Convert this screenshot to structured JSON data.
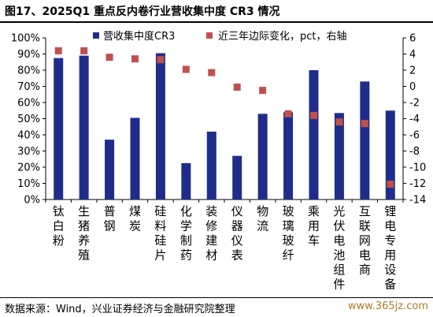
{
  "title": "图17、2025Q1 重点反内卷行业营收集中度 CR3 情况",
  "source": "数据来源：Wind，兴业证券经济与金融研究院整理",
  "watermark": "www.365jz.com",
  "colors": {
    "bar": "#1f2d8a",
    "marker": "#c0504d"
  },
  "chart_data": {
    "type": "bar",
    "categories": [
      "钛白粉",
      "生猪养殖",
      "普钢",
      "煤炭",
      "硅料硅片",
      "化学制药",
      "装修建材",
      "仪器仪表",
      "物流",
      "玻璃玻纤",
      "乘用车",
      "光伏电池组件",
      "互联网电商",
      "锂电专用设备"
    ],
    "series": [
      {
        "name": "营收集中度CR3",
        "type": "bar",
        "axis": "left",
        "values": [
          87.5,
          89,
          37,
          50.5,
          90.5,
          22.5,
          42,
          27,
          53,
          54,
          80,
          53.5,
          73,
          55
        ]
      },
      {
        "name": "近三年边际变化，pct，右轴",
        "type": "marker",
        "axis": "right",
        "values": [
          4.4,
          4.4,
          3.6,
          3.4,
          3.3,
          2.1,
          1.7,
          -0.1,
          -0.5,
          -3.4,
          -3.6,
          -4.4,
          -4.6,
          -12.1
        ]
      }
    ],
    "y_left": {
      "ylim": [
        0,
        100
      ],
      "ticks": [
        "0%",
        "10%",
        "20%",
        "30%",
        "40%",
        "50%",
        "60%",
        "70%",
        "80%",
        "90%",
        "100%"
      ]
    },
    "y_right": {
      "ylim": [
        -14,
        6
      ],
      "ticks": [
        "-14",
        "-12",
        "-10",
        "-8",
        "-6",
        "-4",
        "-2",
        "0",
        "2",
        "4",
        "6"
      ]
    },
    "legend_placement": "top"
  }
}
